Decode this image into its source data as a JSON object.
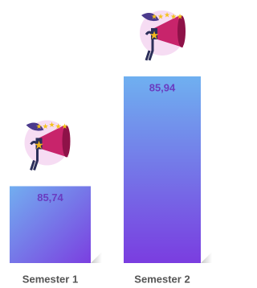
{
  "chart_data": {
    "type": "bar",
    "categories": [
      "Semester 1",
      "Semester 2"
    ],
    "values": [
      85.74,
      85.94
    ],
    "value_labels": [
      "85,74",
      "85,94"
    ],
    "ylim": [
      85.6,
      86.0
    ]
  }
}
